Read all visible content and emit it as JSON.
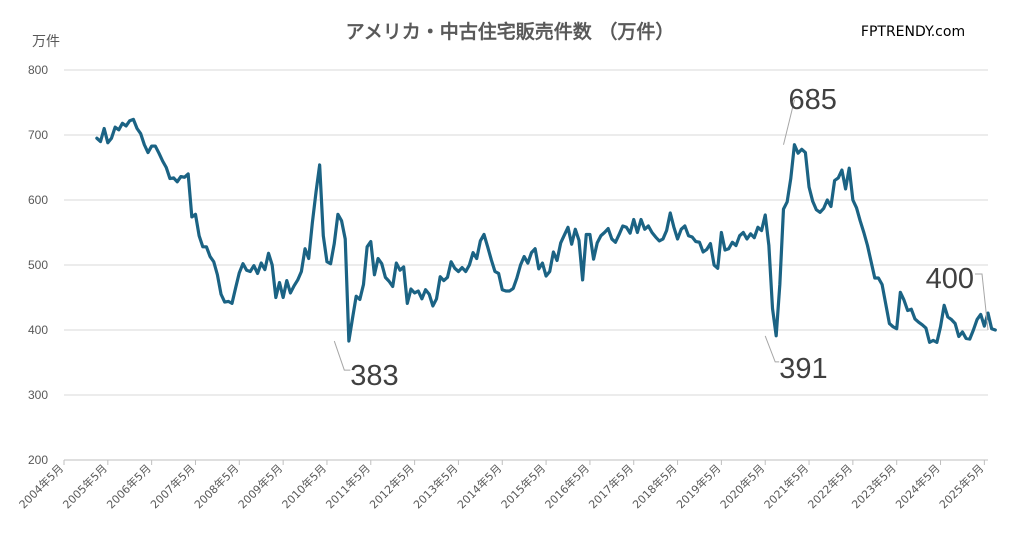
{
  "chart_data": {
    "type": "line",
    "title": "アメリカ・中古住宅販売件数 （万件）",
    "watermark": "FPTRENDY.com",
    "ylabel": "万件",
    "xlabel": "",
    "ylim": [
      200,
      800
    ],
    "yticks": [
      800,
      700,
      600,
      500,
      400,
      300,
      200
    ],
    "grid": true,
    "legend": "none",
    "line_color": "#1b6384",
    "x_tick_labels": [
      "2004年5月",
      "2005年5月",
      "2006年5月",
      "2007年5月",
      "2008年5月",
      "2009年5月",
      "2010年5月",
      "2011年5月",
      "2012年5月",
      "2013年5月",
      "2014年5月",
      "2015年5月",
      "2016年5月",
      "2017年5月",
      "2018年5月",
      "2019年5月",
      "2020年5月",
      "2021年5月",
      "2022年5月",
      "2023年5月",
      "2024年5月",
      "2025年5月"
    ],
    "x_start": "2004年5月",
    "x_end": "2025年6月",
    "series": [
      {
        "start": "2005年2月",
        "values": [
          695,
          690,
          710,
          688,
          695,
          712,
          708,
          718,
          714,
          722,
          724,
          710,
          702,
          685,
          673,
          683,
          683,
          672,
          660,
          650,
          633,
          634,
          628,
          636,
          635,
          640,
          574,
          578,
          545,
          528,
          528,
          513,
          505,
          485,
          455,
          443,
          444,
          441,
          465,
          488,
          502,
          492,
          490,
          499,
          487,
          503,
          493,
          518,
          500,
          450,
          473,
          450,
          476,
          457,
          468,
          477,
          490,
          525,
          510,
          565,
          612,
          654,
          545,
          505,
          502,
          533,
          578,
          568,
          540,
          383,
          418,
          452,
          447,
          470,
          528,
          536,
          485,
          510,
          502,
          481,
          475,
          467,
          503,
          492,
          497,
          441,
          463,
          457,
          460,
          448,
          462,
          455,
          437,
          448,
          482,
          476,
          481,
          505,
          495,
          490,
          496,
          490,
          500,
          519,
          510,
          537,
          547,
          528,
          508,
          490,
          487,
          462,
          460,
          460,
          464,
          480,
          500,
          513,
          503,
          519,
          525,
          494,
          503,
          483,
          490,
          520,
          507,
          534,
          546,
          558,
          532,
          555,
          538,
          477,
          547,
          547,
          509,
          534,
          545,
          550,
          556,
          540,
          535,
          547,
          560,
          558,
          549,
          570,
          550,
          570,
          555,
          560,
          550,
          543,
          537,
          540,
          553,
          580,
          558,
          540,
          555,
          560,
          545,
          543,
          536,
          535,
          520,
          524,
          533,
          500,
          495,
          550,
          523,
          525,
          535,
          530,
          545,
          550,
          540,
          548,
          542,
          558,
          553,
          577,
          530,
          433,
          391,
          470,
          586,
          597,
          633,
          685,
          672,
          678,
          673,
          620,
          598,
          585,
          581,
          587,
          600,
          590,
          630,
          634,
          646,
          617,
          649,
          600,
          588,
          568,
          550,
          530,
          505,
          480,
          480,
          470,
          440,
          410,
          405,
          402,
          458,
          446,
          430,
          432,
          417,
          412,
          408,
          403,
          381,
          384,
          381,
          405,
          438,
          420,
          416,
          410,
          390,
          397,
          387,
          386,
          400,
          416,
          424,
          406,
          426,
          402,
          400
        ]
      }
    ],
    "annotations": [
      {
        "label": "685",
        "date": "2020年10月",
        "value": 685
      },
      {
        "label": "383",
        "date": "2010年7月",
        "value": 383
      },
      {
        "label": "391",
        "date": "2020年5月",
        "value": 391
      },
      {
        "label": "400",
        "date": "2025年6月",
        "value": 400
      }
    ]
  }
}
